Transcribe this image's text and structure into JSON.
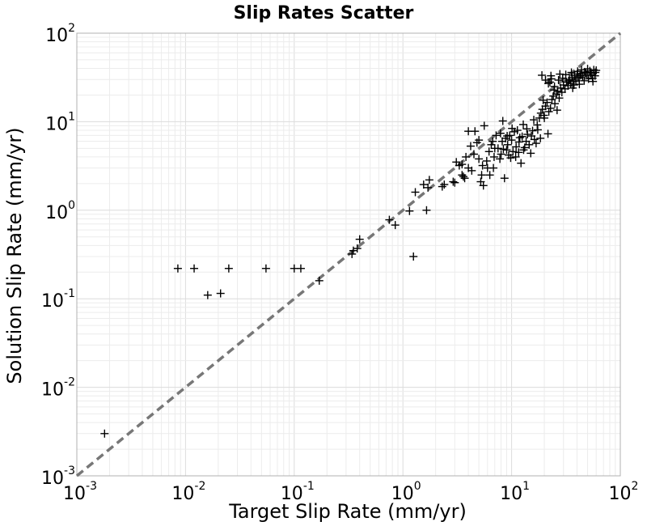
{
  "chart_data": {
    "type": "scatter",
    "title": "Slip Rates Scatter",
    "xlabel": "Target Slip Rate (mm/yr)",
    "ylabel": "Solution Slip Rate (mm/yr)",
    "xscale": "log",
    "yscale": "log",
    "xlim": [
      0.001,
      100
    ],
    "ylim": [
      0.001,
      100
    ],
    "grid": true,
    "marker": "+",
    "marker_color": "#000000",
    "reference_line": {
      "style": "dashed",
      "color": "#777777",
      "from": [
        0.001,
        0.001
      ],
      "to": [
        100,
        100
      ]
    },
    "x_ticks": [
      {
        "base": "10",
        "exp": "-3"
      },
      {
        "base": "10",
        "exp": "-2"
      },
      {
        "base": "10",
        "exp": "-1"
      },
      {
        "base": "10",
        "exp": "0"
      },
      {
        "base": "10",
        "exp": "1"
      },
      {
        "base": "10",
        "exp": "2"
      }
    ],
    "y_ticks": [
      {
        "base": "10",
        "exp": "-3"
      },
      {
        "base": "10",
        "exp": "-2"
      },
      {
        "base": "10",
        "exp": "-1"
      },
      {
        "base": "10",
        "exp": "0"
      },
      {
        "base": "10",
        "exp": "1"
      },
      {
        "base": "10",
        "exp": "2"
      }
    ],
    "points": [
      [
        0.0018,
        0.003
      ],
      [
        0.0085,
        0.22
      ],
      [
        0.012,
        0.22
      ],
      [
        0.025,
        0.22
      ],
      [
        0.055,
        0.22
      ],
      [
        0.1,
        0.22
      ],
      [
        0.115,
        0.22
      ],
      [
        0.016,
        0.11
      ],
      [
        0.021,
        0.115
      ],
      [
        0.17,
        0.16
      ],
      [
        0.34,
        0.32
      ],
      [
        0.35,
        0.35
      ],
      [
        0.38,
        0.37
      ],
      [
        0.4,
        0.47
      ],
      [
        0.75,
        0.78
      ],
      [
        0.85,
        0.68
      ],
      [
        1.15,
        0.98
      ],
      [
        1.25,
        0.3
      ],
      [
        1.3,
        1.6
      ],
      [
        1.65,
        1.0
      ],
      [
        1.7,
        1.8
      ],
      [
        1.75,
        2.2
      ],
      [
        1.55,
        1.95
      ],
      [
        2.3,
        1.85
      ],
      [
        2.4,
        1.95
      ],
      [
        2.9,
        2.1
      ],
      [
        3.0,
        2.05
      ],
      [
        3.1,
        3.5
      ],
      [
        3.3,
        3.2
      ],
      [
        3.5,
        2.5
      ],
      [
        3.7,
        2.3
      ],
      [
        3.5,
        3.3
      ],
      [
        3.8,
        4.0
      ],
      [
        3.6,
        2.4
      ],
      [
        4.0,
        7.8
      ],
      [
        4.6,
        7.8
      ],
      [
        4.2,
        5.3
      ],
      [
        4.8,
        5.8
      ],
      [
        5.0,
        3.8
      ],
      [
        4.5,
        4.3
      ],
      [
        4.0,
        3.0
      ],
      [
        4.3,
        2.8
      ],
      [
        5.2,
        2.1
      ],
      [
        5.5,
        1.9
      ],
      [
        5.4,
        3.2
      ],
      [
        5.9,
        3.6
      ],
      [
        5.0,
        6.2
      ],
      [
        5.6,
        9.0
      ],
      [
        6.0,
        3.0
      ],
      [
        5.3,
        2.5
      ],
      [
        6.3,
        2.5
      ],
      [
        6.8,
        3.0
      ],
      [
        6.2,
        4.6
      ],
      [
        6.5,
        5.5
      ],
      [
        7.0,
        5.0
      ],
      [
        7.2,
        7.0
      ],
      [
        6.7,
        6.0
      ],
      [
        6.9,
        4.0
      ],
      [
        7.5,
        5.0
      ],
      [
        7.8,
        3.8
      ],
      [
        8.0,
        4.3
      ],
      [
        8.2,
        6.0
      ],
      [
        7.9,
        7.4
      ],
      [
        8.3,
        10.2
      ],
      [
        8.8,
        6.5
      ],
      [
        8.6,
        2.3
      ],
      [
        9.0,
        4.8
      ],
      [
        9.2,
        5.5
      ],
      [
        9.4,
        4.2
      ],
      [
        9.6,
        7.0
      ],
      [
        9.8,
        3.9
      ],
      [
        10.0,
        6.2
      ],
      [
        10.3,
        4.6
      ],
      [
        10.6,
        7.7
      ],
      [
        11.0,
        5.2
      ],
      [
        11.3,
        8.0
      ],
      [
        11.6,
        4.5
      ],
      [
        11.9,
        6.6
      ],
      [
        12.2,
        3.4
      ],
      [
        12.5,
        6.8
      ],
      [
        12.8,
        9.3
      ],
      [
        13.2,
        5.1
      ],
      [
        13.6,
        6.0
      ],
      [
        14.0,
        7.2
      ],
      [
        14.5,
        5.5
      ],
      [
        15.0,
        4.4
      ],
      [
        15.6,
        7.9
      ],
      [
        16.2,
        6.3
      ],
      [
        16.8,
        5.7
      ],
      [
        17.4,
        8.1
      ],
      [
        8.4,
        4.9
      ],
      [
        9.1,
        6.9
      ],
      [
        10.1,
        8.4
      ],
      [
        10.9,
        4.0
      ],
      [
        11.7,
        5.9
      ],
      [
        12.9,
        4.8
      ],
      [
        13.8,
        8.3
      ],
      [
        15.2,
        6.9
      ],
      [
        18.0,
        11.0
      ],
      [
        18.6,
        12.5
      ],
      [
        19.2,
        13.8
      ],
      [
        19.8,
        11.8
      ],
      [
        20.5,
        15.0
      ],
      [
        21.2,
        16.5
      ],
      [
        22.0,
        13.0
      ],
      [
        22.8,
        14.2
      ],
      [
        23.5,
        17.8
      ],
      [
        24.2,
        19.5
      ],
      [
        25.0,
        16.0
      ],
      [
        25.8,
        20.5
      ],
      [
        26.6,
        22.0
      ],
      [
        27.4,
        18.5
      ],
      [
        28.2,
        24.0
      ],
      [
        29.0,
        21.5
      ],
      [
        19.5,
        17.5
      ],
      [
        20.0,
        11.0
      ],
      [
        21.6,
        7.3
      ],
      [
        17.2,
        9.2
      ],
      [
        18.4,
        6.5
      ],
      [
        16.0,
        10.5
      ],
      [
        24.8,
        25.0
      ],
      [
        26.2,
        13.5
      ],
      [
        30.0,
        26.0
      ],
      [
        31.0,
        23.5
      ],
      [
        32.0,
        28.0
      ],
      [
        33.0,
        25.5
      ],
      [
        34.0,
        30.0
      ],
      [
        35.0,
        27.0
      ],
      [
        36.0,
        31.5
      ],
      [
        37.0,
        28.5
      ],
      [
        38.0,
        33.0
      ],
      [
        39.0,
        29.5
      ],
      [
        40.0,
        34.5
      ],
      [
        41.0,
        31.0
      ],
      [
        42.0,
        26.5
      ],
      [
        43.5,
        35.0
      ],
      [
        45.0,
        32.0
      ],
      [
        46.5,
        29.0
      ],
      [
        48.0,
        36.0
      ],
      [
        49.5,
        33.5
      ],
      [
        51.0,
        30.5
      ],
      [
        52.5,
        37.5
      ],
      [
        54.0,
        34.0
      ],
      [
        55.5,
        31.0
      ],
      [
        57.0,
        38.5
      ],
      [
        58.5,
        33.0
      ],
      [
        22.5,
        28.0
      ],
      [
        23.2,
        30.5
      ],
      [
        24.6,
        22.8
      ],
      [
        27.0,
        29.5
      ],
      [
        29.5,
        31.0
      ],
      [
        31.5,
        34.0
      ],
      [
        33.5,
        29.0
      ],
      [
        35.5,
        36.0
      ],
      [
        37.5,
        26.0
      ],
      [
        40.5,
        37.0
      ],
      [
        44.0,
        38.5
      ],
      [
        47.0,
        36.5
      ],
      [
        50.0,
        39.5
      ],
      [
        53.0,
        35.5
      ],
      [
        56.0,
        28.5
      ],
      [
        59.0,
        36.0
      ],
      [
        21.8,
        27.0
      ],
      [
        23.0,
        33.0
      ],
      [
        19.0,
        33.5
      ],
      [
        20.5,
        29.5
      ],
      [
        27.8,
        34.5
      ],
      [
        36.5,
        24.0
      ],
      [
        42.5,
        33.2
      ],
      [
        60.0,
        38.0
      ]
    ]
  }
}
